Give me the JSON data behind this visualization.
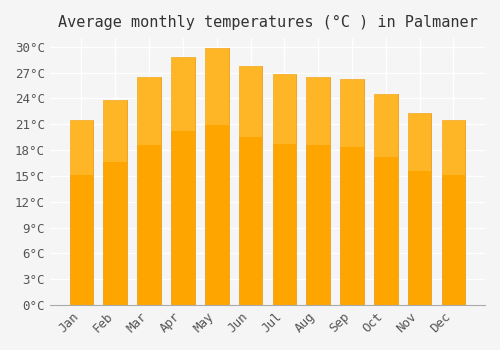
{
  "title": "Average monthly temperatures (°C ) in Palmaner",
  "months": [
    "Jan",
    "Feb",
    "Mar",
    "Apr",
    "May",
    "Jun",
    "Jul",
    "Aug",
    "Sep",
    "Oct",
    "Nov",
    "Dec"
  ],
  "values": [
    21.5,
    23.8,
    26.5,
    28.8,
    29.8,
    27.8,
    26.8,
    26.5,
    26.3,
    24.5,
    22.3,
    21.5
  ],
  "bar_color": "#FFA500",
  "bar_edge_color": "#E8950A",
  "ylim": [
    0,
    31
  ],
  "yticks": [
    0,
    3,
    6,
    9,
    12,
    15,
    18,
    21,
    24,
    27,
    30
  ],
  "ytick_labels": [
    "0°C",
    "3°C",
    "6°C",
    "9°C",
    "12°C",
    "15°C",
    "18°C",
    "21°C",
    "24°C",
    "27°C",
    "30°C"
  ],
  "background_color": "#f5f5f5",
  "grid_color": "#ffffff",
  "title_fontsize": 11,
  "tick_fontsize": 9,
  "font_family": "monospace"
}
